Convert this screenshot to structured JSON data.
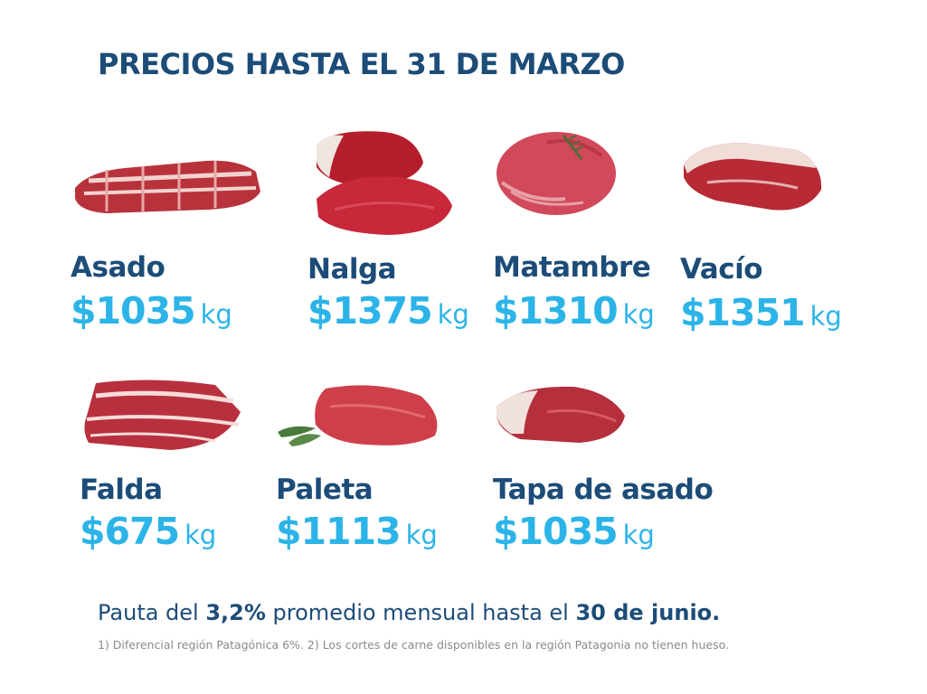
{
  "title": "PRECIOS HASTA EL 31 DE MARZO",
  "products": [
    {
      "name": "Asado",
      "price": "$1035",
      "unit": "kg",
      "icon": "asado-meat-icon"
    },
    {
      "name": "Nalga",
      "price": "$1375",
      "unit": "kg",
      "icon": "nalga-meat-icon"
    },
    {
      "name": "Matambre",
      "price": "$1310",
      "unit": "kg",
      "icon": "matambre-meat-icon"
    },
    {
      "name": "Vacío",
      "price": "$1351",
      "unit": "kg",
      "icon": "vacio-meat-icon"
    },
    {
      "name": "Falda",
      "price": "$675",
      "unit": "kg",
      "icon": "falda-meat-icon"
    },
    {
      "name": "Paleta",
      "price": "$1113",
      "unit": "kg",
      "icon": "paleta-meat-icon"
    },
    {
      "name": "Tapa de asado",
      "price": "$1035",
      "unit": "kg",
      "icon": "tapa-de-asado-meat-icon"
    }
  ],
  "pauta": {
    "prefix": "Pauta del ",
    "percent": "3,2%",
    "middle": " promedio mensual hasta el ",
    "date": "30 de junio."
  },
  "footnote": "1) Diferencial región Patagónica 6%. 2) Los cortes de carne disponibles en la región Patagonia no tienen hueso.",
  "colors": {
    "title": "#1c4c78",
    "price": "#2cb4e8",
    "footnote": "#8a8a8a"
  }
}
